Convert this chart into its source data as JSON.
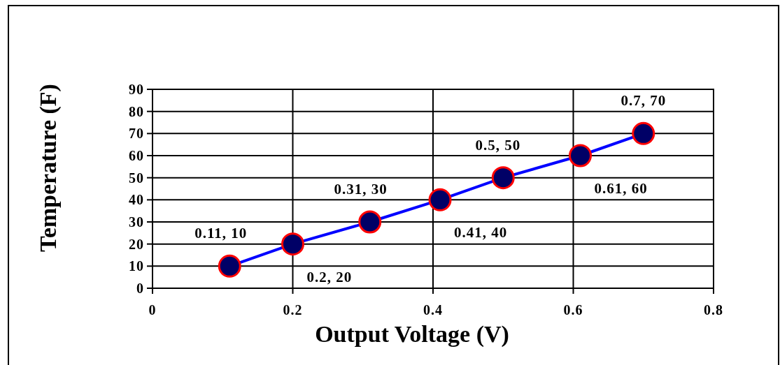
{
  "chart_data": {
    "type": "line",
    "xlabel": "Output Voltage  (V)",
    "ylabel": "Temperature  (F)",
    "x": [
      0.11,
      0.2,
      0.31,
      0.41,
      0.5,
      0.61,
      0.7
    ],
    "series": [
      {
        "color": "#0000ff",
        "values": [
          10,
          20,
          30,
          40,
          50,
          60,
          70
        ],
        "value_labels": [
          "0.11, 10",
          "0.2, 20",
          "0.31, 30",
          "0.41, 40",
          "0.5, 50",
          "0.61, 60",
          "0.7, 70"
        ]
      }
    ],
    "marker": "circle",
    "line_style": "solid",
    "xlim": [
      0,
      0.8
    ],
    "xticks": [
      0,
      0.2,
      0.4,
      0.6,
      0.8
    ],
    "ylim": [
      0,
      90
    ],
    "yticks": [
      0,
      10,
      20,
      30,
      40,
      50,
      60,
      70,
      80,
      90
    ],
    "grid": true
  }
}
